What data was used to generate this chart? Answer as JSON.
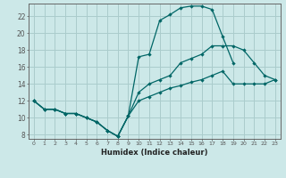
{
  "xlabel": "Humidex (Indice chaleur)",
  "background_color": "#cce8e8",
  "grid_color": "#aacccc",
  "line_color": "#006666",
  "xlim": [
    -0.5,
    23.5
  ],
  "ylim": [
    7.5,
    23.5
  ],
  "xticks": [
    0,
    1,
    2,
    3,
    4,
    5,
    6,
    7,
    8,
    9,
    10,
    11,
    12,
    13,
    14,
    15,
    16,
    17,
    18,
    19,
    20,
    21,
    22,
    23
  ],
  "yticks": [
    8,
    10,
    12,
    14,
    16,
    18,
    20,
    22
  ],
  "line1_x": [
    0,
    1,
    2,
    3,
    4,
    5,
    6,
    7,
    8,
    9,
    10,
    11,
    12,
    13,
    14,
    15,
    16,
    17,
    18,
    19,
    20,
    21,
    22,
    23
  ],
  "line1_y": [
    12,
    11,
    11,
    10.5,
    10.5,
    10,
    9.5,
    8.5,
    7.8,
    10.2,
    17.2,
    17.5,
    21.5,
    22.2,
    23.0,
    23.2,
    23.2,
    22.8,
    19.6,
    16.5,
    null,
    null,
    null,
    null
  ],
  "line2_x": [
    0,
    1,
    2,
    3,
    4,
    5,
    6,
    7,
    8,
    9,
    10,
    11,
    12,
    13,
    14,
    15,
    16,
    17,
    18,
    19,
    20,
    21,
    22,
    23
  ],
  "line2_y": [
    12,
    11,
    11,
    10.5,
    10.5,
    10,
    9.5,
    8.5,
    7.8,
    10.2,
    13.0,
    14.0,
    14.5,
    15.0,
    16.5,
    17.0,
    17.5,
    18.5,
    18.5,
    18.5,
    18.0,
    16.5,
    15.0,
    14.5
  ],
  "line3_x": [
    0,
    1,
    2,
    3,
    4,
    5,
    6,
    7,
    8,
    9,
    10,
    11,
    12,
    13,
    14,
    15,
    16,
    17,
    18,
    19,
    20,
    21,
    22,
    23
  ],
  "line3_y": [
    12,
    11,
    11,
    10.5,
    10.5,
    10,
    9.5,
    8.5,
    7.8,
    10.2,
    12.0,
    12.5,
    13.0,
    13.5,
    13.8,
    14.2,
    14.5,
    15.0,
    15.5,
    14.0,
    14.0,
    14.0,
    14.0,
    14.5
  ]
}
